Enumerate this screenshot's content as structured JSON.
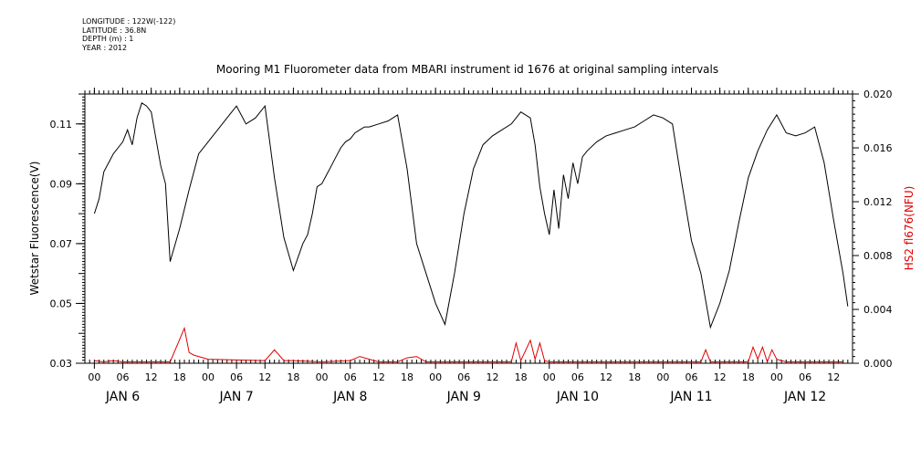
{
  "header": {
    "longitude": "LONGITUDE : 122W(-122)",
    "latitude": "LATITUDE : 36.8N",
    "depth": "DEPTH (m) : 1",
    "year": "YEAR : 2012"
  },
  "colors": {
    "primary": "#000000",
    "secondary": "#e00000"
  },
  "chart_data": {
    "type": "line",
    "title": "Mooring M1 Fluorometer data from MBARI instrument id 1676 at original sampling intervals",
    "ylabel": "Wetstar Fluorescence(V)",
    "y2label": "HS2 fl676(NFU)",
    "ylim": [
      0.03,
      0.12
    ],
    "y2lim": [
      0.0,
      0.02
    ],
    "yticks": [
      "0.03",
      "0.05",
      "0.07",
      "0.09",
      "0.11"
    ],
    "y2ticks": [
      "0.000",
      "0.004",
      "0.008",
      "0.012",
      "0.016",
      "0.020"
    ],
    "xlim_hours": [
      -2,
      160
    ],
    "x_hour_ticks": [
      "00",
      "06",
      "12",
      "18",
      "00",
      "06",
      "12",
      "18",
      "00",
      "06",
      "12",
      "18",
      "00",
      "06",
      "12",
      "18",
      "00",
      "06",
      "12",
      "18",
      "00",
      "06",
      "12",
      "18",
      "00",
      "06",
      "12"
    ],
    "x_day_labels": [
      "JAN  6",
      "JAN  7",
      "JAN  8",
      "JAN  9",
      "JAN 10",
      "JAN 11",
      "JAN 12"
    ],
    "series": [
      {
        "name": "Wetstar Fluorescence(V)",
        "axis": "left",
        "x": [
          0,
          1,
          2,
          3,
          4,
          5,
          6,
          7,
          8,
          9,
          10,
          11,
          12,
          13,
          14,
          15,
          16,
          18,
          20,
          22,
          24,
          26,
          28,
          30,
          32,
          34,
          36,
          38,
          40,
          42,
          44,
          45,
          46,
          47,
          48,
          49,
          50,
          51,
          52,
          53,
          54,
          55,
          56,
          57,
          58,
          60,
          62,
          64,
          66,
          68,
          70,
          72,
          74,
          76,
          78,
          80,
          82,
          84,
          86,
          88,
          90,
          92,
          93,
          94,
          95,
          96,
          97,
          98,
          99,
          100,
          101,
          102,
          103,
          104,
          106,
          108,
          110,
          112,
          114,
          116,
          118,
          120,
          122,
          124,
          126,
          128,
          130,
          132,
          134,
          136,
          138,
          140,
          142,
          144,
          146,
          148,
          150,
          152,
          154,
          156,
          158,
          159
        ],
        "values": [
          0.08,
          0.085,
          0.094,
          0.097,
          0.1,
          0.102,
          0.104,
          0.108,
          0.103,
          0.112,
          0.117,
          0.116,
          0.114,
          0.105,
          0.096,
          0.09,
          0.064,
          0.075,
          0.088,
          0.1,
          0.104,
          0.108,
          0.112,
          0.116,
          0.11,
          0.112,
          0.116,
          0.092,
          0.072,
          0.061,
          0.07,
          0.073,
          0.08,
          0.089,
          0.09,
          0.093,
          0.096,
          0.099,
          0.102,
          0.104,
          0.105,
          0.107,
          0.108,
          0.109,
          0.109,
          0.11,
          0.111,
          0.113,
          0.095,
          0.07,
          0.06,
          0.05,
          0.043,
          0.06,
          0.08,
          0.095,
          0.103,
          0.106,
          0.108,
          0.11,
          0.114,
          0.112,
          0.103,
          0.089,
          0.08,
          0.073,
          0.088,
          0.075,
          0.093,
          0.085,
          0.097,
          0.09,
          0.099,
          0.101,
          0.104,
          0.106,
          0.107,
          0.108,
          0.109,
          0.111,
          0.113,
          0.112,
          0.11,
          0.09,
          0.071,
          0.06,
          0.042,
          0.05,
          0.061,
          0.077,
          0.092,
          0.101,
          0.108,
          0.113,
          0.107,
          0.106,
          0.107,
          0.109,
          0.097,
          0.078,
          0.06,
          0.049
        ]
      },
      {
        "name": "HS2 fl676(NFU)",
        "axis": "right",
        "x": [
          0,
          2,
          4,
          6,
          8,
          10,
          12,
          14,
          16,
          19,
          20,
          21,
          22,
          24,
          36,
          38,
          40,
          42,
          48,
          54,
          56,
          60,
          64,
          66,
          68,
          70,
          72,
          74,
          76,
          78,
          80,
          82,
          84,
          86,
          88,
          89,
          90,
          92,
          93,
          94,
          95,
          96,
          98,
          100,
          102,
          104,
          106,
          108,
          110,
          112,
          114,
          116,
          118,
          120,
          122,
          124,
          126,
          128,
          129,
          130,
          132,
          134,
          136,
          138,
          139,
          140,
          141,
          142,
          143,
          144,
          146,
          148,
          150,
          152,
          154,
          156,
          158
        ],
        "values": [
          0.0002,
          0.0001,
          0.0002,
          0.0001,
          0.0001,
          0.0001,
          0.0001,
          0.0001,
          0.0001,
          0.0026,
          0.0008,
          0.0006,
          0.0005,
          0.0003,
          0.0002,
          0.001,
          0.0002,
          0.0002,
          0.0001,
          0.0002,
          0.0005,
          0.0001,
          0.0001,
          0.0004,
          0.0005,
          0.0001,
          0.0001,
          0.0001,
          0.0001,
          0.0001,
          0.0001,
          0.0001,
          0.0001,
          0.0001,
          0.0001,
          0.0015,
          0.0002,
          0.0017,
          0.0003,
          0.0015,
          0.0002,
          0.0001,
          0.0001,
          0.0001,
          0.0001,
          0.0001,
          0.0001,
          0.0001,
          0.0001,
          0.0001,
          0.0001,
          0.0001,
          0.0001,
          0.0001,
          0.0001,
          0.0001,
          0.0001,
          0.0001,
          0.001,
          0.0001,
          0.0001,
          0.0001,
          0.0001,
          0.0001,
          0.0012,
          0.0003,
          0.0012,
          0.0001,
          0.001,
          0.0003,
          0.0001,
          0.0001,
          0.0001,
          0.0001,
          0.0001,
          0.0001,
          0.0001
        ]
      }
    ]
  }
}
